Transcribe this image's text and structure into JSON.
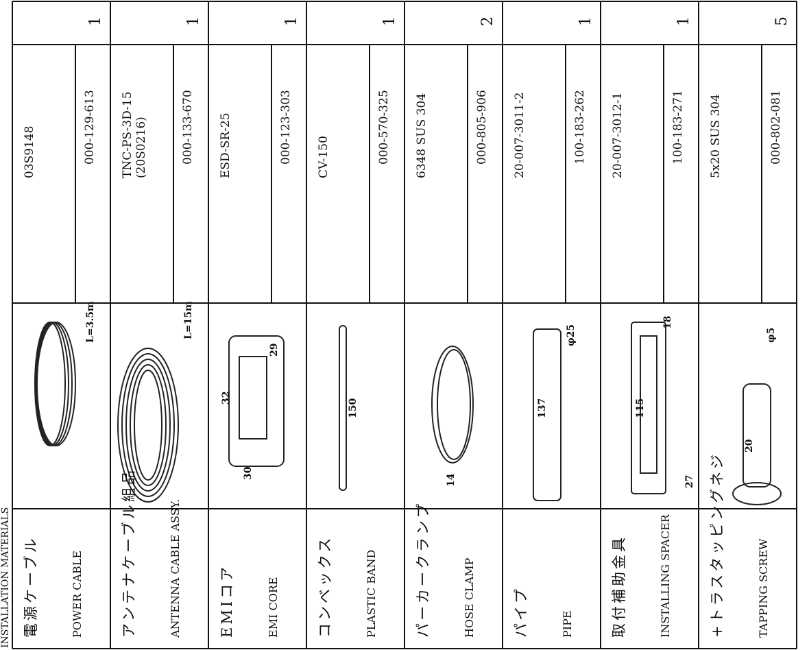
{
  "title": "INSTALLATION MATERIALS",
  "items": [
    {
      "name_ja": "電源ケーブル",
      "name_en": "POWER CABLE",
      "dimensions": [
        "L=3.5m"
      ],
      "type": [
        "03S9148"
      ],
      "code": "000-129-613",
      "qty": 1
    },
    {
      "name_ja": "アンテナケーブル組品",
      "name_en": "ANTENNA CABLE ASSY.",
      "dimensions": [
        "L=15m"
      ],
      "type": [
        "TNC-PS-3D-15",
        "(20S0216)"
      ],
      "code": "000-133-670",
      "qty": 1
    },
    {
      "name_ja": "EMIコア",
      "name_en": "EMI CORE",
      "dimensions": [
        "29",
        "32",
        "30"
      ],
      "type": [
        "ESD-SR-25"
      ],
      "code": "000-123-303",
      "qty": 1
    },
    {
      "name_ja": "コンベックス",
      "name_en": "PLASTIC BAND",
      "dimensions": [
        "150"
      ],
      "type": [
        "CV-150"
      ],
      "code": "000-570-325",
      "qty": 1
    },
    {
      "name_ja": "パーカークランプ",
      "name_en": "HOSE CLAMP",
      "dimensions": [
        "14"
      ],
      "type": [
        "6348  SUS 304"
      ],
      "code": "000-805-906",
      "qty": 2
    },
    {
      "name_ja": "パイプ",
      "name_en": "PIPE",
      "dimensions": [
        "137",
        "φ25"
      ],
      "type": [
        "20-007-3011-2"
      ],
      "code": "100-183-262",
      "qty": 1
    },
    {
      "name_ja": "取付補助金具",
      "name_en": "INSTALLING SPACER",
      "dimensions": [
        "115",
        "18",
        "27"
      ],
      "type": [
        "20-007-3012-1"
      ],
      "code": "100-183-271",
      "qty": 1
    },
    {
      "name_ja": "+トラスタッピングネジ",
      "name_en": "TAPPING SCREW",
      "dimensions": [
        "20",
        "φ5"
      ],
      "type": [
        "5x20  SUS 304"
      ],
      "code": "000-802-081",
      "qty": 5
    }
  ]
}
